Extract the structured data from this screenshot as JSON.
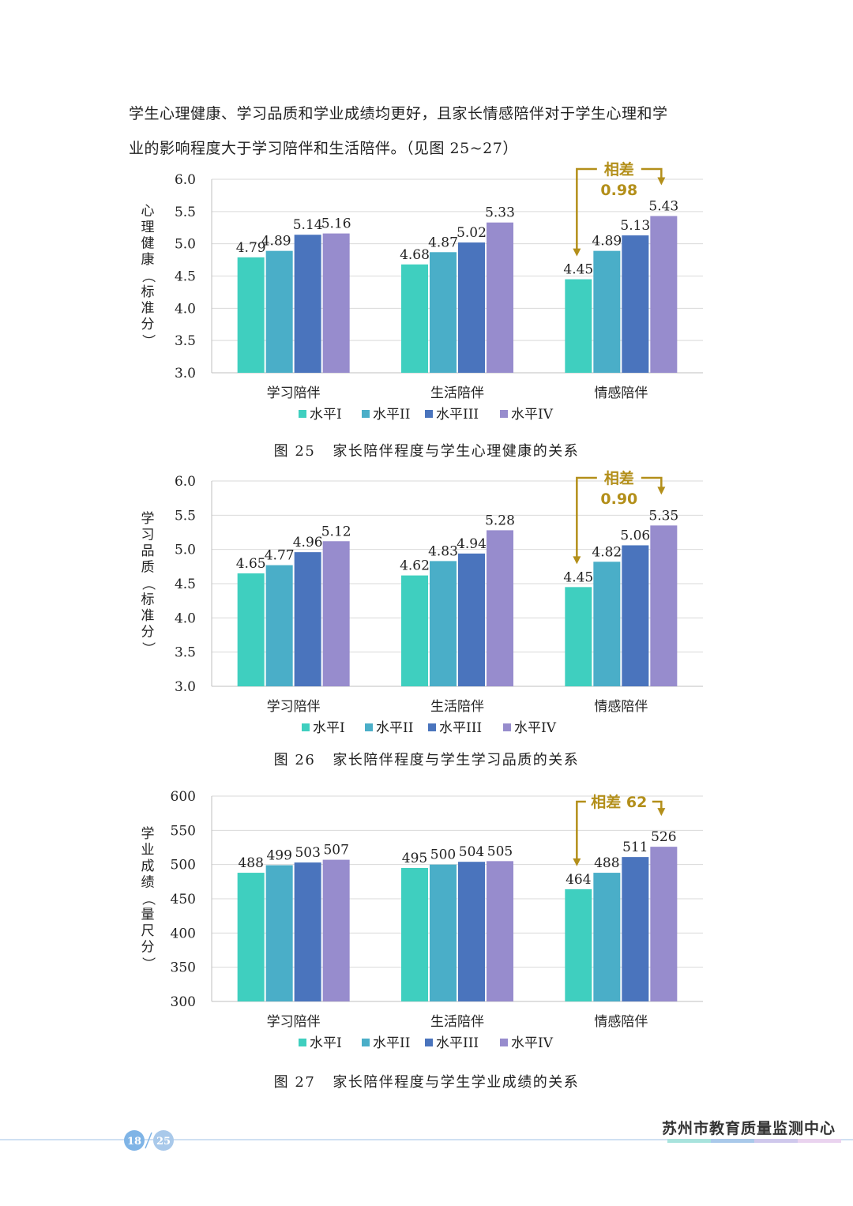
{
  "paragraph": [
    "学生心理健康、学习品质和学业成绩均更好，且家长情感陪伴对于学生心理和学",
    "业的影响程度大于学习陪伴和生活陪伴。（见图 25~27）"
  ],
  "colors": {
    "level1": "#3fcfbf",
    "level2": "#4aaec8",
    "level3": "#4a74bd",
    "level4": "#978ccd",
    "annotation": "#b38f1a"
  },
  "chart_data": [
    {
      "type": "bar",
      "figure": "图 25",
      "title": "家长陪伴程度与学生心理健康的关系",
      "ylabel": "心理健康（标准分）",
      "ylim": [
        3.0,
        6.0
      ],
      "yticks": [
        "6.0",
        "5.5",
        "5.0",
        "4.5",
        "4.0",
        "3.5",
        "3.0"
      ],
      "categories": [
        "学习陪伴",
        "生活陪伴",
        "情感陪伴"
      ],
      "series": [
        {
          "name": "水平I",
          "values": [
            4.79,
            4.68,
            4.45
          ]
        },
        {
          "name": "水平II",
          "values": [
            4.89,
            4.87,
            4.89
          ]
        },
        {
          "name": "水平III",
          "values": [
            5.14,
            5.02,
            5.13
          ]
        },
        {
          "name": "水平IV",
          "values": [
            5.16,
            5.33,
            5.43
          ]
        }
      ],
      "labels": [
        [
          "4.79",
          "4.89",
          "5.14",
          "5.16"
        ],
        [
          "4.68",
          "4.87",
          "5.02",
          "5.33"
        ],
        [
          "4.45",
          "4.89",
          "5.13",
          "5.43"
        ]
      ],
      "annotation": {
        "line1": "相差",
        "line2": "0.98"
      },
      "legend": [
        "水平I",
        "水平II",
        "水平III",
        "水平IV"
      ]
    },
    {
      "type": "bar",
      "figure": "图 26",
      "title": "家长陪伴程度与学生学习品质的关系",
      "ylabel": "学习品质（标准分）",
      "ylim": [
        3.0,
        6.0
      ],
      "yticks": [
        "6.0",
        "5.5",
        "5.0",
        "4.5",
        "4.0",
        "3.5",
        "3.0"
      ],
      "categories": [
        "学习陪伴",
        "生活陪伴",
        "情感陪伴"
      ],
      "series": [
        {
          "name": "水平I",
          "values": [
            4.65,
            4.62,
            4.45
          ]
        },
        {
          "name": "水平II",
          "values": [
            4.77,
            4.83,
            4.82
          ]
        },
        {
          "name": "水平III",
          "values": [
            4.96,
            4.94,
            5.06
          ]
        },
        {
          "name": "水平IV",
          "values": [
            5.12,
            5.28,
            5.35
          ]
        }
      ],
      "labels": [
        [
          "4.65",
          "4.77",
          "4.96",
          "5.12"
        ],
        [
          "4.62",
          "4.83",
          "4.94",
          "5.28"
        ],
        [
          "4.45",
          "4.82",
          "5.06",
          "5.35"
        ]
      ],
      "annotation": {
        "line1": "相差",
        "line2": "0.90"
      },
      "legend": [
        "水平I",
        "水平II",
        "水平III",
        "水平IV"
      ]
    },
    {
      "type": "bar",
      "figure": "图 27",
      "title": "家长陪伴程度与学生学业成绩的关系",
      "ylabel": "学业成绩（量尺分）",
      "ylim": [
        300,
        600
      ],
      "yticks": [
        "600",
        "550",
        "500",
        "450",
        "400",
        "350",
        "300"
      ],
      "categories": [
        "学习陪伴",
        "生活陪伴",
        "情感陪伴"
      ],
      "series": [
        {
          "name": "水平I",
          "values": [
            488,
            495,
            464
          ]
        },
        {
          "name": "水平II",
          "values": [
            499,
            500,
            488
          ]
        },
        {
          "name": "水平III",
          "values": [
            503,
            504,
            511
          ]
        },
        {
          "name": "水平IV",
          "values": [
            507,
            505,
            526
          ]
        }
      ],
      "labels": [
        [
          "488",
          "499",
          "503",
          "507"
        ],
        [
          "495",
          "500",
          "504",
          "505"
        ],
        [
          "464",
          "488",
          "511",
          "526"
        ]
      ],
      "annotation": {
        "line1": "相差 62",
        "line2": ""
      },
      "legend": [
        "水平I",
        "水平II",
        "水平III",
        "水平IV"
      ]
    }
  ],
  "footer": {
    "page_current": "18",
    "page_total": "25",
    "brand": "苏州市教育质量监测中心"
  }
}
